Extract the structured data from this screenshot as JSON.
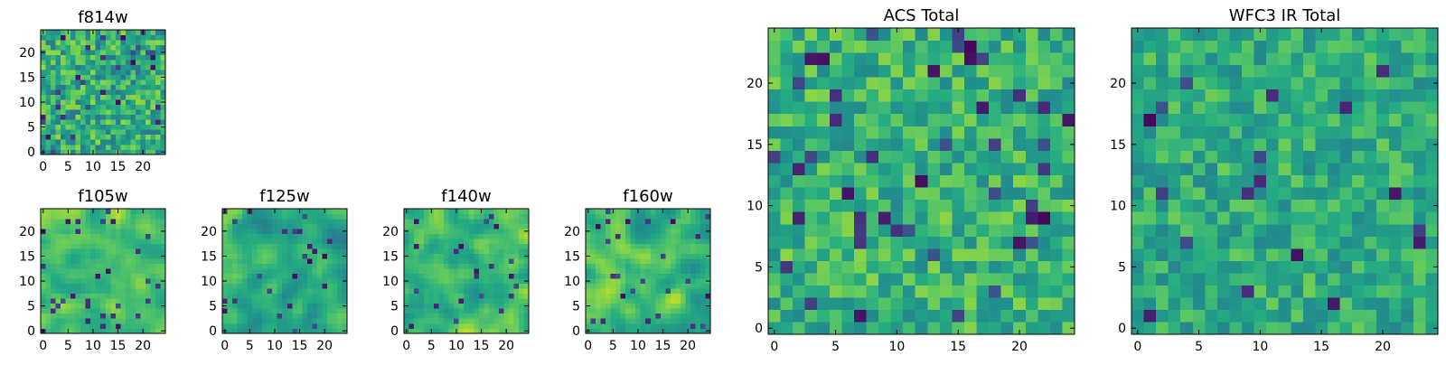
{
  "chart_data": [
    {
      "type": "heatmap",
      "title": "f814w",
      "grid": [
        25,
        25
      ],
      "colormap": "viridis",
      "x_ticks": [
        "0",
        "5",
        "10",
        "15",
        "20"
      ],
      "y_ticks": [
        "0",
        "5",
        "10",
        "15",
        "20"
      ],
      "xlim": [
        -0.5,
        24.5
      ],
      "ylim": [
        -0.5,
        24.5
      ],
      "texture": "noise",
      "seed": 11,
      "value_mean": 0.62,
      "value_spread": 0.22,
      "dark_fraction": 0.05
    },
    {
      "type": "heatmap",
      "title": "f105w",
      "grid": [
        25,
        25
      ],
      "colormap": "viridis",
      "x_ticks": [
        "0",
        "5",
        "10",
        "15",
        "20"
      ],
      "y_ticks": [
        "0",
        "5",
        "10",
        "15",
        "20"
      ],
      "xlim": [
        -0.5,
        24.5
      ],
      "ylim": [
        -0.5,
        24.5
      ],
      "texture": "smooth",
      "seed": 23,
      "value_mean": 0.74,
      "value_spread": 0.18,
      "dark_fraction": 0.04
    },
    {
      "type": "heatmap",
      "title": "f125w",
      "grid": [
        25,
        25
      ],
      "colormap": "viridis",
      "x_ticks": [
        "0",
        "5",
        "10",
        "15",
        "20"
      ],
      "y_ticks": [
        "0",
        "5",
        "10",
        "15",
        "20"
      ],
      "xlim": [
        -0.5,
        24.5
      ],
      "ylim": [
        -0.5,
        24.5
      ],
      "texture": "smooth",
      "seed": 37,
      "value_mean": 0.62,
      "value_spread": 0.2,
      "dark_fraction": 0.04
    },
    {
      "type": "heatmap",
      "title": "f140w",
      "grid": [
        25,
        25
      ],
      "colormap": "viridis",
      "x_ticks": [
        "0",
        "5",
        "10",
        "15",
        "20"
      ],
      "y_ticks": [
        "0",
        "5",
        "10",
        "15",
        "20"
      ],
      "xlim": [
        -0.5,
        24.5
      ],
      "ylim": [
        -0.5,
        24.5
      ],
      "texture": "smooth",
      "seed": 41,
      "value_mean": 0.7,
      "value_spread": 0.2,
      "dark_fraction": 0.04
    },
    {
      "type": "heatmap",
      "title": "f160w",
      "grid": [
        25,
        25
      ],
      "colormap": "viridis",
      "x_ticks": [
        "0",
        "5",
        "10",
        "15",
        "20"
      ],
      "y_ticks": [
        "0",
        "5",
        "10",
        "15",
        "20"
      ],
      "xlim": [
        -0.5,
        24.5
      ],
      "ylim": [
        -0.5,
        24.5
      ],
      "texture": "smooth",
      "seed": 53,
      "value_mean": 0.68,
      "value_spread": 0.22,
      "dark_fraction": 0.05
    },
    {
      "type": "heatmap",
      "title": "ACS Total",
      "grid": [
        25,
        25
      ],
      "colormap": "viridis",
      "x_ticks": [
        "0",
        "5",
        "10",
        "15",
        "20"
      ],
      "y_ticks": [
        "0",
        "5",
        "10",
        "15",
        "20"
      ],
      "xlim": [
        -0.5,
        24.5
      ],
      "ylim": [
        -0.5,
        24.5
      ],
      "texture": "noise",
      "seed": 67,
      "value_mean": 0.65,
      "value_spread": 0.18,
      "dark_fraction": 0.05
    },
    {
      "type": "heatmap",
      "title": "WFC3 IR Total",
      "grid": [
        25,
        25
      ],
      "colormap": "viridis",
      "x_ticks": [
        "0",
        "5",
        "10",
        "15",
        "20"
      ],
      "y_ticks": [
        "0",
        "5",
        "10",
        "15",
        "20"
      ],
      "xlim": [
        -0.5,
        24.5
      ],
      "ylim": [
        -0.5,
        24.5
      ],
      "texture": "noise",
      "seed": 79,
      "value_mean": 0.62,
      "value_spread": 0.16,
      "dark_fraction": 0.04
    }
  ]
}
